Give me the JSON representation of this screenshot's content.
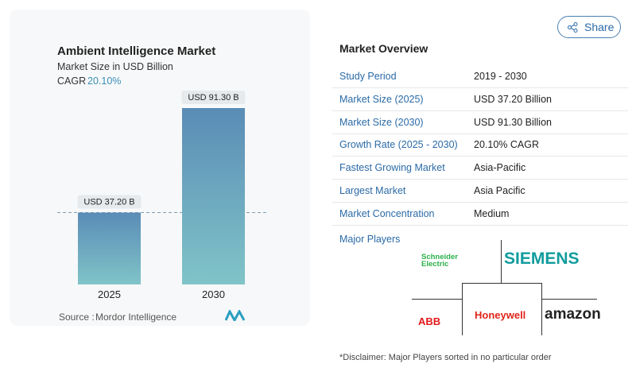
{
  "chart_data": {
    "type": "bar",
    "title": "Ambient Intelligence Market",
    "subtitle": "Market Size in USD Billion",
    "cagr_label": "CAGR",
    "cagr_value": "20.10%",
    "categories": [
      "2025",
      "2030"
    ],
    "values": [
      37.2,
      91.3
    ],
    "value_labels": [
      "USD 37.20 B",
      "USD 91.30 B"
    ],
    "source_label": "Source :",
    "source": "Mordor Intelligence"
  },
  "share": "Share",
  "overview": {
    "title": "Market Overview",
    "rows": [
      [
        "Study Period",
        "2019 - 2030"
      ],
      [
        "Market Size (2025)",
        "USD 37.20 Billion"
      ],
      [
        "Market Size (2030)",
        "USD 91.30 Billion"
      ],
      [
        "Growth Rate (2025 - 2030)",
        "20.10% CAGR"
      ],
      [
        "Fastest Growing Market",
        "Asia-Pacific"
      ],
      [
        "Largest Market",
        "Asia Pacific"
      ],
      [
        "Market Concentration",
        "Medium"
      ]
    ]
  },
  "players": {
    "title": "Major Players",
    "names": [
      "Schneider Electric",
      "SIEMENS",
      "ABB",
      "Honeywell",
      "amazon"
    ]
  },
  "disclaimer": "*Disclaimer: Major Players sorted in no particular order"
}
